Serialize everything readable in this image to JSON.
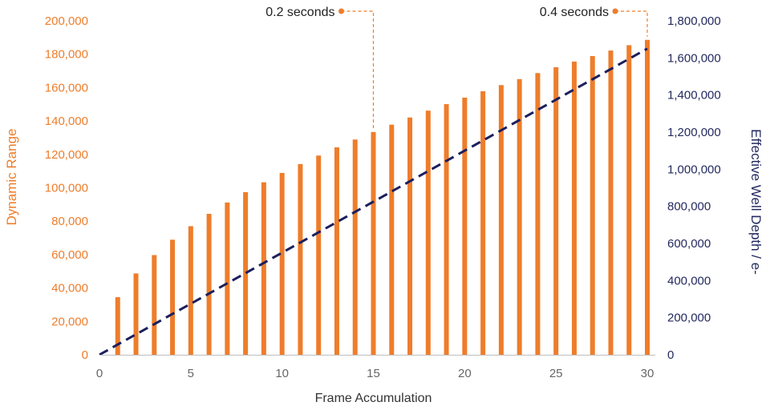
{
  "chart_data": {
    "type": "bar",
    "title": "",
    "xlabel": "Frame Accumulation",
    "ylabel": "Dynamic Range",
    "y2label": "Effective Well Depth / e-",
    "xlim": [
      0,
      30
    ],
    "ylim": [
      0,
      200000
    ],
    "y2lim": [
      0,
      1800000
    ],
    "x_ticks": [
      "0",
      "5",
      "10",
      "15",
      "20",
      "25",
      "30"
    ],
    "y_ticks": [
      "0",
      "20,000",
      "40,000",
      "60,000",
      "80,000",
      "100,000",
      "120,000",
      "140,000",
      "160,000",
      "180,000",
      "200,000"
    ],
    "y2_ticks": [
      "0",
      "200,000",
      "400,000",
      "600,000",
      "800,000",
      "1,000,000",
      "1,200,000",
      "1,400,000",
      "1,600,000",
      "1,800,000"
    ],
    "grid": false,
    "legend": "none",
    "x": [
      1,
      2,
      3,
      4,
      5,
      6,
      7,
      8,
      9,
      10,
      11,
      12,
      13,
      14,
      15,
      16,
      17,
      18,
      19,
      20,
      21,
      22,
      23,
      24,
      25,
      26,
      27,
      28,
      29,
      30
    ],
    "series": [
      {
        "type": "bar",
        "axis": "left",
        "color": "#ee7d2b",
        "values": [
          34500,
          48700,
          59700,
          68900,
          77000,
          84400,
          91200,
          97400,
          103300,
          108900,
          114200,
          119300,
          124200,
          128900,
          133400,
          137800,
          142100,
          146200,
          150100,
          154000,
          157800,
          161500,
          165100,
          168700,
          172200,
          175600,
          178900,
          182200,
          185400,
          188600
        ]
      },
      {
        "type": "line",
        "style": "dashed",
        "axis": "right",
        "color": "#1b1f5e",
        "x": [
          0,
          30
        ],
        "values": [
          0,
          1650000
        ]
      }
    ],
    "annotations": [
      {
        "text": "0.2 seconds",
        "x": 15,
        "target_y": 133400,
        "color": "#ee7d2b"
      },
      {
        "text": "0.4 seconds",
        "x": 30,
        "target_y": 188600,
        "color": "#ee7d2b"
      }
    ]
  }
}
